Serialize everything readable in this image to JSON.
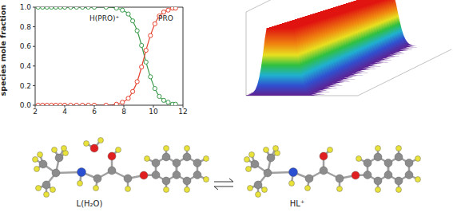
{
  "chart_data": {
    "type": "line",
    "ylabel": "species mole fraction",
    "x": [
      2.2,
      2.5,
      2.8,
      3.1,
      3.4,
      3.7,
      4.0,
      4.4,
      4.8,
      5.2,
      5.6,
      6.0,
      6.8,
      7.5,
      7.9,
      8.3,
      8.6,
      8.9,
      9.2,
      9.5,
      9.8,
      10.1,
      10.4,
      10.7,
      11.0,
      11.3,
      11.5
    ],
    "series": [
      {
        "name": "H(PRO)⁺",
        "color": "#3a9a4a",
        "marker": "circle",
        "values": [
          1,
          1,
          1,
          1,
          1,
          1,
          1,
          1,
          1,
          1,
          1,
          1,
          1,
          0.99,
          0.97,
          0.93,
          0.86,
          0.76,
          0.61,
          0.44,
          0.29,
          0.17,
          0.09,
          0.05,
          0.03,
          0.01,
          0.01
        ]
      },
      {
        "name": "PRO",
        "color": "#e5412f",
        "marker": "circle",
        "values": [
          0,
          0,
          0,
          0,
          0,
          0,
          0,
          0,
          0,
          0,
          0,
          0,
          0,
          0.01,
          0.03,
          0.07,
          0.14,
          0.24,
          0.39,
          0.56,
          0.71,
          0.83,
          0.91,
          0.95,
          0.97,
          0.99,
          0.99
        ]
      }
    ],
    "xlim": [
      2,
      12
    ],
    "xticks": [
      2,
      4,
      6,
      8,
      10,
      12
    ],
    "ylim": [
      0,
      1
    ],
    "yticks": [
      {
        "value": 0,
        "label": "0.0"
      },
      {
        "value": 0.2,
        "label": "0.2"
      },
      {
        "value": 0.4,
        "label": "0.4"
      },
      {
        "value": 0.6,
        "label": "0.6"
      },
      {
        "value": 0.8,
        "label": "0.8"
      },
      {
        "value": 1,
        "label": "1.0"
      }
    ]
  },
  "molecules": {
    "left": "L(H₂O)",
    "right": "HL⁺"
  }
}
